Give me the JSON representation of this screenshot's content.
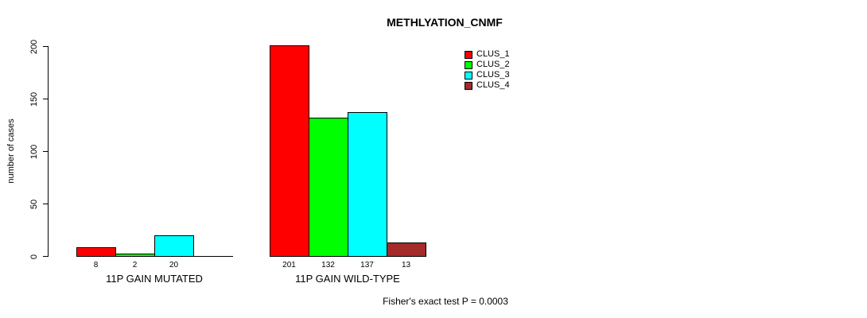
{
  "title": "METHLYATION_CNMF",
  "y_axis_label": "number of cases",
  "footnote": "Fisher's exact test P = 0.0003",
  "legend": [
    {
      "label": "CLUS_1",
      "color": "#ff0000"
    },
    {
      "label": "CLUS_2",
      "color": "#00ff00"
    },
    {
      "label": "CLUS_3",
      "color": "#00ffff"
    },
    {
      "label": "CLUS_4",
      "color": "#a52a2a"
    }
  ],
  "chart_data": {
    "type": "bar",
    "title": "METHLYATION_CNMF",
    "ylabel": "number of cases",
    "xlabel": "",
    "ylim": [
      0,
      200
    ],
    "yticks": [
      0,
      50,
      100,
      150,
      200
    ],
    "grid": false,
    "legend_position": "top-right",
    "series_names": [
      "CLUS_1",
      "CLUS_2",
      "CLUS_3",
      "CLUS_4"
    ],
    "series_colors": [
      "#ff0000",
      "#00ff00",
      "#00ffff",
      "#a52a2a"
    ],
    "groups": [
      {
        "label": "11P GAIN MUTATED",
        "values": [
          8,
          2,
          20,
          0
        ],
        "bar_labels": [
          "8",
          "2",
          "20",
          ""
        ]
      },
      {
        "label": "11P GAIN WILD-TYPE",
        "values": [
          201,
          132,
          137,
          13
        ],
        "bar_labels": [
          "201",
          "132",
          "137",
          "13"
        ]
      }
    ],
    "annotation": "Fisher's exact test P = 0.0003"
  }
}
